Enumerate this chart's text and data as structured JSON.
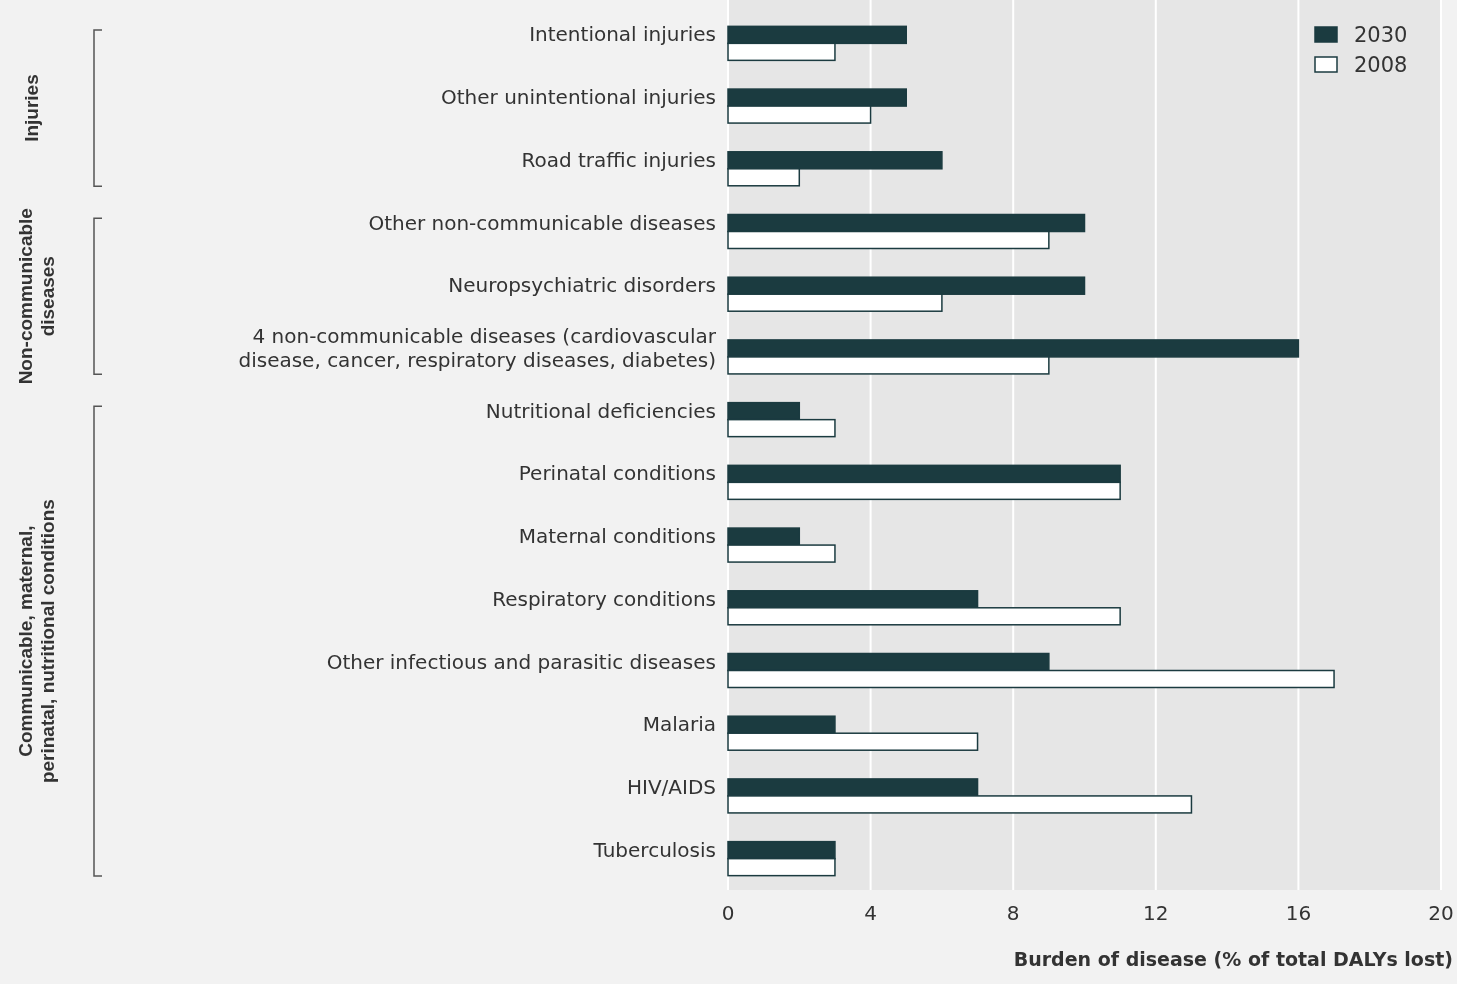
{
  "chart_data": {
    "type": "bar",
    "orientation": "horizontal",
    "xlabel": "Burden of disease (% of total DALYs lost)",
    "categories": [
      "Intentional injuries",
      "Other unintentional injuries",
      "Road traffic injuries",
      "Other non-communicable diseases",
      "Neuropsychiatric disorders",
      "4 non-communicable diseases (cardiovascular disease, cancer, respiratory diseases, diabetes)",
      "Nutritional deficiencies",
      "Perinatal conditions",
      "Maternal conditions",
      "Respiratory conditions",
      "Other infectious and parasitic diseases",
      "Malaria",
      "HIV/AIDS",
      "Tuberculosis"
    ],
    "series": [
      {
        "name": "2030",
        "color": "#1b3b40",
        "values": [
          5,
          5,
          6,
          10,
          10,
          16,
          2,
          11,
          2,
          7,
          9,
          3,
          7,
          3
        ]
      },
      {
        "name": "2008",
        "color": "#ffffff",
        "values": [
          3,
          4,
          2,
          9,
          6,
          9,
          3,
          11,
          3,
          11,
          17,
          7,
          13,
          3
        ]
      }
    ],
    "xlim": [
      0,
      20
    ],
    "xticks": [
      0,
      4,
      8,
      12,
      16,
      20
    ],
    "grid": "x",
    "legend": "top right",
    "annotations": [
      "Injuries",
      "Non-communicable diseases",
      "Communicable, maternal, perinatal, nutritional conditions"
    ]
  }
}
